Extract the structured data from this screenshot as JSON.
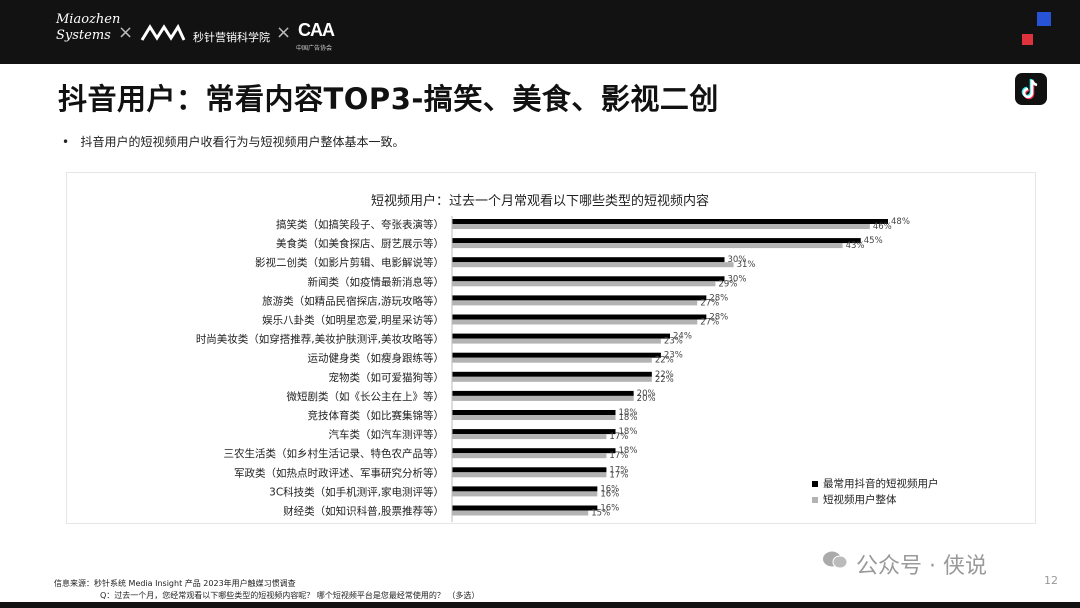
{
  "header": {
    "brand_left": "Miaozhen\nSystems",
    "brand_middle": "秒针营销科学院",
    "brand_right": "CAA",
    "brand_right_sub": "中国广告协会",
    "separator": "×",
    "accent_blue": "#2754d6",
    "accent_red": "#e0323c"
  },
  "title": "抖音用户：常看内容TOP3-搞笑、美食、影视二创",
  "app_icon": "tiktok-icon",
  "bullet": "抖音用户的短视频用户收看行为与短视频用户整体基本一致。",
  "chart_data": {
    "type": "bar",
    "orientation": "horizontal",
    "title": "短视频用户：过去一个月常观看以下哪些类型的短视频内容",
    "categories": [
      "搞笑类（如搞笑段子、夸张表演等）",
      "美食类（如美食探店、厨艺展示等）",
      "影视二创类（如影片剪辑、电影解说等）",
      "新闻类（如疫情最新消息等）",
      "旅游类（如精品民宿探店,游玩攻略等）",
      "娱乐八卦类（如明星恋爱,明星采访等）",
      "时尚美妆类（如穿搭推荐,美妆护肤测评,美妆攻略等）",
      "运动健身类（如瘦身跟练等）",
      "宠物类（如可爱猫狗等）",
      "微短剧类（如《长公主在上》等）",
      "竞技体育类（如比赛集锦等）",
      "汽车类（如汽车测评等）",
      "三农生活类（如乡村生活记录、特色农产品等）",
      "军政类（如热点时政评述、军事研究分析等）",
      "3C科技类（如手机测评,家电测评等）",
      "财经类（如知识科普,股票推荐等）"
    ],
    "series": [
      {
        "name": "最常用抖音的短视频用户",
        "color": "#000000",
        "values": [
          48,
          45,
          30,
          30,
          28,
          28,
          24,
          23,
          22,
          20,
          18,
          18,
          18,
          17,
          16,
          16
        ]
      },
      {
        "name": "短视频用户整体",
        "color": "#b3b3b3",
        "values": [
          46,
          43,
          31,
          29,
          27,
          27,
          23,
          22,
          22,
          20,
          18,
          17,
          17,
          17,
          16,
          15
        ]
      }
    ],
    "value_suffix": "%",
    "xlim": [
      0,
      48
    ],
    "grid": false,
    "legend_position": "bottom-right"
  },
  "footer": {
    "source": "信息来源：秒针系统 Media Insight 产品 2023年用户触媒习惯调查",
    "question": "Q：过去一个月，您经常观看以下哪些类型的短视频内容呢？ 哪个短视频平台是您最经常使用的？ （多选）"
  },
  "watermark": "公众号 · 侠说",
  "page_number": "12"
}
